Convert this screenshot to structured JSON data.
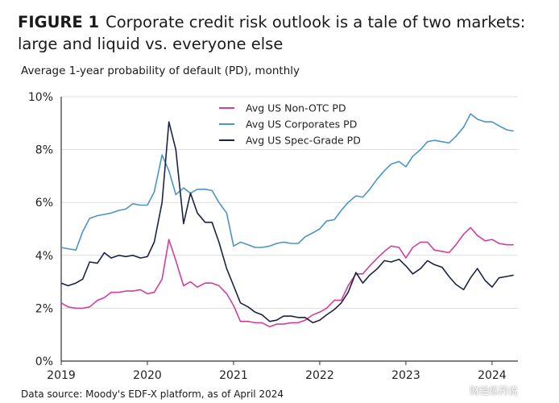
{
  "figure": {
    "label": "FIGURE 1",
    "title": "Corporate credit risk outlook is a tale of two markets: large and liquid vs. everyone else",
    "subtitle": "Average 1-year probability of default (PD), monthly",
    "source": "Data source: Moody's EDF-X platform, as of April 2024",
    "watermark": "财经炼药说"
  },
  "colors": {
    "non_otc": "#d0409a",
    "corporates": "#4a95c8",
    "spec_grade": "#1b2245",
    "axis": "#333333",
    "grid": "#dddddd"
  },
  "chart_data": {
    "type": "line",
    "title": "Average 1-year probability of default (PD), monthly",
    "xlabel": "",
    "ylabel": "",
    "xlim": [
      2019.0,
      2024.3
    ],
    "ylim": [
      0,
      10
    ],
    "y_ticks": [
      "0%",
      "2%",
      "4%",
      "6%",
      "8%",
      "10%"
    ],
    "x_ticks": [
      "2019",
      "2020",
      "2021",
      "2022",
      "2023",
      "2024"
    ],
    "x_tick_values": [
      2019,
      2020,
      2021,
      2022,
      2023,
      2024
    ],
    "y_tick_values": [
      0,
      2,
      4,
      6,
      8,
      10
    ],
    "legend_position": "top-left",
    "series": [
      {
        "name": "Avg US Non-OTC PD",
        "color_key": "non_otc",
        "x": [
          2019.0,
          2019.08,
          2019.17,
          2019.25,
          2019.33,
          2019.42,
          2019.5,
          2019.58,
          2019.67,
          2019.75,
          2019.83,
          2019.92,
          2020.0,
          2020.08,
          2020.17,
          2020.25,
          2020.33,
          2020.42,
          2020.5,
          2020.58,
          2020.67,
          2020.75,
          2020.83,
          2020.92,
          2021.0,
          2021.08,
          2021.17,
          2021.25,
          2021.33,
          2021.42,
          2021.5,
          2021.58,
          2021.67,
          2021.75,
          2021.83,
          2021.92,
          2022.0,
          2022.08,
          2022.17,
          2022.25,
          2022.33,
          2022.42,
          2022.5,
          2022.58,
          2022.67,
          2022.75,
          2022.83,
          2022.92,
          2023.0,
          2023.08,
          2023.17,
          2023.25,
          2023.33,
          2023.42,
          2023.5,
          2023.58,
          2023.67,
          2023.75,
          2023.83,
          2023.92,
          2024.0,
          2024.08,
          2024.17,
          2024.25
        ],
        "values": [
          2.2,
          2.05,
          2.0,
          2.0,
          2.05,
          2.3,
          2.4,
          2.6,
          2.6,
          2.65,
          2.65,
          2.7,
          2.55,
          2.6,
          3.1,
          4.6,
          3.8,
          2.85,
          3.0,
          2.8,
          2.95,
          2.95,
          2.85,
          2.55,
          2.1,
          1.5,
          1.5,
          1.45,
          1.45,
          1.3,
          1.4,
          1.4,
          1.45,
          1.45,
          1.55,
          1.75,
          1.85,
          2.0,
          2.3,
          2.3,
          2.85,
          3.3,
          3.3,
          3.6,
          3.9,
          4.15,
          4.35,
          4.3,
          3.9,
          4.3,
          4.5,
          4.5,
          4.2,
          4.15,
          4.1,
          4.4,
          4.8,
          5.05,
          4.75,
          4.55,
          4.6,
          4.45,
          4.4,
          4.4
        ]
      },
      {
        "name": "Avg US Corporates PD",
        "color_key": "corporates",
        "x": [
          2019.0,
          2019.08,
          2019.17,
          2019.25,
          2019.33,
          2019.42,
          2019.5,
          2019.58,
          2019.67,
          2019.75,
          2019.83,
          2019.92,
          2020.0,
          2020.08,
          2020.17,
          2020.25,
          2020.33,
          2020.42,
          2020.5,
          2020.58,
          2020.67,
          2020.75,
          2020.83,
          2020.92,
          2021.0,
          2021.08,
          2021.17,
          2021.25,
          2021.33,
          2021.42,
          2021.5,
          2021.58,
          2021.67,
          2021.75,
          2021.83,
          2021.92,
          2022.0,
          2022.08,
          2022.17,
          2022.25,
          2022.33,
          2022.42,
          2022.5,
          2022.58,
          2022.67,
          2022.75,
          2022.83,
          2022.92,
          2023.0,
          2023.08,
          2023.17,
          2023.25,
          2023.33,
          2023.42,
          2023.5,
          2023.58,
          2023.67,
          2023.75,
          2023.83,
          2023.92,
          2024.0,
          2024.08,
          2024.17,
          2024.25
        ],
        "values": [
          4.3,
          4.25,
          4.2,
          4.9,
          5.4,
          5.5,
          5.55,
          5.6,
          5.7,
          5.75,
          5.95,
          5.9,
          5.9,
          6.4,
          7.8,
          7.2,
          6.3,
          6.55,
          6.35,
          6.5,
          6.5,
          6.45,
          6.0,
          5.6,
          4.35,
          4.5,
          4.4,
          4.3,
          4.3,
          4.35,
          4.45,
          4.5,
          4.45,
          4.45,
          4.7,
          4.85,
          5.0,
          5.3,
          5.35,
          5.7,
          6.0,
          6.25,
          6.2,
          6.5,
          6.9,
          7.2,
          7.45,
          7.55,
          7.35,
          7.75,
          8.0,
          8.3,
          8.35,
          8.3,
          8.25,
          8.5,
          8.85,
          9.35,
          9.15,
          9.05,
          9.05,
          8.9,
          8.75,
          8.7
        ]
      },
      {
        "name": "Avg US Spec-Grade PD",
        "color_key": "spec_grade",
        "x": [
          2019.0,
          2019.08,
          2019.17,
          2019.25,
          2019.33,
          2019.42,
          2019.5,
          2019.58,
          2019.67,
          2019.75,
          2019.83,
          2019.92,
          2020.0,
          2020.08,
          2020.17,
          2020.25,
          2020.33,
          2020.42,
          2020.5,
          2020.58,
          2020.67,
          2020.75,
          2020.83,
          2020.92,
          2021.0,
          2021.08,
          2021.17,
          2021.25,
          2021.33,
          2021.42,
          2021.5,
          2021.58,
          2021.67,
          2021.75,
          2021.83,
          2021.92,
          2022.0,
          2022.08,
          2022.17,
          2022.25,
          2022.33,
          2022.42,
          2022.5,
          2022.58,
          2022.67,
          2022.75,
          2022.83,
          2022.92,
          2023.0,
          2023.08,
          2023.17,
          2023.25,
          2023.33,
          2023.42,
          2023.5,
          2023.58,
          2023.67,
          2023.75,
          2023.83,
          2023.92,
          2024.0,
          2024.08,
          2024.17,
          2024.25
        ],
        "values": [
          2.95,
          2.85,
          2.95,
          3.1,
          3.75,
          3.7,
          4.1,
          3.9,
          4.0,
          3.95,
          4.0,
          3.9,
          3.95,
          4.5,
          6.0,
          9.05,
          8.0,
          5.2,
          6.35,
          5.6,
          5.25,
          5.25,
          4.5,
          3.5,
          2.85,
          2.2,
          2.05,
          1.85,
          1.75,
          1.5,
          1.55,
          1.7,
          1.7,
          1.65,
          1.65,
          1.45,
          1.55,
          1.75,
          1.95,
          2.2,
          2.6,
          3.35,
          2.95,
          3.25,
          3.5,
          3.8,
          3.75,
          3.85,
          3.6,
          3.3,
          3.5,
          3.8,
          3.65,
          3.55,
          3.2,
          2.9,
          2.7,
          3.15,
          3.5,
          3.05,
          2.8,
          3.15,
          3.2,
          3.25
        ]
      }
    ]
  }
}
